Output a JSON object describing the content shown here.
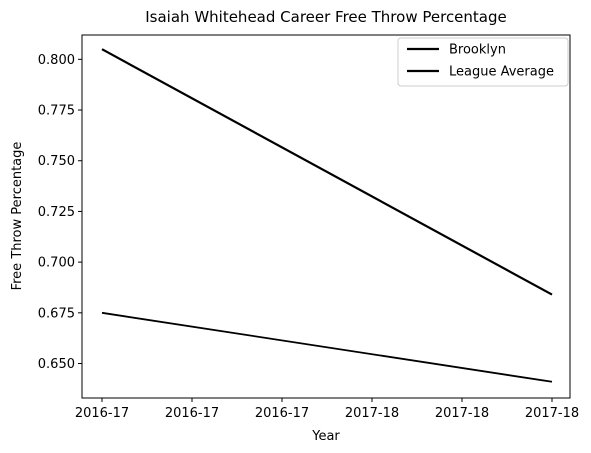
{
  "chart_data": {
    "type": "line",
    "title": "Isaiah Whitehead Career Free Throw Percentage",
    "xlabel": "Year",
    "ylabel": "Free Throw Percentage",
    "x_tick_labels": [
      "2016-17",
      "2016-17",
      "2016-17",
      "2017-18",
      "2017-18",
      "2017-18"
    ],
    "x": [
      "2016-17",
      "2017-18"
    ],
    "ylim": [
      0.633,
      0.812
    ],
    "y_ticks": [
      0.65,
      0.675,
      0.7,
      0.725,
      0.75,
      0.775,
      0.8
    ],
    "y_tick_labels": [
      "0.650",
      "0.675",
      "0.700",
      "0.725",
      "0.750",
      "0.775",
      "0.800"
    ],
    "grid": false,
    "legend_position": "top-right",
    "series": [
      {
        "name": "Brooklyn",
        "values": [
          0.805,
          0.684
        ],
        "color": "#000000"
      },
      {
        "name": "League Average",
        "values": [
          0.675,
          0.641
        ],
        "color": "#000000"
      }
    ]
  }
}
